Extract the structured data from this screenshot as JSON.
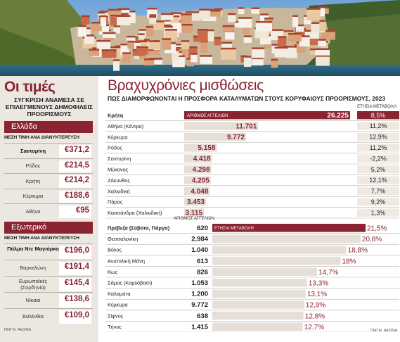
{
  "left": {
    "title": "Οι τιμές",
    "subtitle": "ΣΥΓΚΡΙΣΗ ΑΝΑΜΕΣΑ ΣΕ ΕΠΙΛΕΓΜΕΝΟΥΣ ΔΗΜΟΦΙΛΕΙΣ ΠΡΟΟΡΙΣΜΟΥΣ",
    "greece": {
      "header": "Ελλάδα",
      "caption": "ΜΕΣΗ ΤΙΜΗ ΑΝΑ ΔΙΑΝΥΚΤΕΡΕΥΣΗ",
      "rows": [
        {
          "name": "Σαντορίνη",
          "price": "€371,2",
          "bold": true
        },
        {
          "name": "Ρόδος",
          "price": "€214,5",
          "bold": false
        },
        {
          "name": "Κρήτη",
          "price": "€214,2",
          "bold": false
        },
        {
          "name": "Κέρκυρα",
          "price": "€188,6",
          "bold": false
        },
        {
          "name": "Αθήνα",
          "price": "€95",
          "bold": false
        }
      ]
    },
    "abroad": {
      "header": "Εξωτερικό",
      "caption": "ΜΕΣΗ ΤΙΜΗ ΑΝΑ ΔΙΑΝΥΚΤΕΡΕΥΣΗ",
      "rows": [
        {
          "name": "Πάλμα Ντε Μαγιόρκα",
          "price": "€196,0",
          "bold": true
        },
        {
          "name": "Βαρκελώνη",
          "price": "€191,4",
          "bold": false
        },
        {
          "name": "Ευρωπαϊκές (Σαρδηνία)",
          "price": "€145,4",
          "bold": false
        },
        {
          "name": "Νίκαια",
          "price": "€138,6",
          "bold": false
        },
        {
          "name": "Βαλένθια",
          "price": "€109,0",
          "bold": false
        }
      ]
    },
    "source": "ΠΗΓΗ: AirDNA"
  },
  "right": {
    "title": "Βραχυχρόνιες μισθώσεις",
    "subtitle": "ΠΩΣ ΔΙΑΜΟΡΦΩΝΟΝΤΑΙ Η ΠΡΟΣΦΟΡΑ ΚΑΤΑΛΥΜΑΤΩΝ ΣΤΟΥΣ ΚΟΡΥΦΑΙΟΥΣ ΠΡΟΟΡΙΣΜΟΥΣ, 2023",
    "source": "ΠΗΓΗ: AirDNA"
  },
  "chart_data": [
    {
      "type": "bar",
      "title": "Βραχυχρόνιες μισθώσεις",
      "series_label": "ΑΡΙΘΜΟΣ ΑΓΓΕΛΙΩΝ",
      "change_label": "ΕΤΗΣΙΑ ΜΕΤΑΒΟΛΗ",
      "categories": [
        "Κρήτη",
        "Αθήνα (Κέντρο)",
        "Κέρκυρα",
        "Ρόδος",
        "Σαντορίνη",
        "Μύκονος",
        "Ζάκυνθος",
        "Χαλκιδική",
        "Πάρος",
        "Κασσάνδρα (Χαλκιδική)"
      ],
      "values": [
        26225,
        11701,
        9772,
        5158,
        4418,
        4298,
        4205,
        4048,
        3453,
        3115
      ],
      "value_labels": [
        "26.225",
        "11.701",
        "9.772",
        "5.158",
        "4.418",
        "4.298",
        "4.205",
        "4.048",
        "3.453",
        "3.115"
      ],
      "changes": [
        8.5,
        11.2,
        12.9,
        11.2,
        -2.2,
        5.2,
        12.1,
        7.7,
        9.2,
        1.3
      ],
      "change_labels": [
        "8,5%",
        "11,2%",
        "12,9%",
        "11,2%",
        "-2,2%",
        "5,2%",
        "12,1%",
        "7,7%",
        "9,2%",
        "1,3%"
      ],
      "bold_categories": [
        "Κρήτη"
      ]
    },
    {
      "type": "bar",
      "series_label": "ΑΡΙΘΜΟΣ ΑΓΓΕΛΙΩΝ",
      "change_label": "ΕΤΗΣΙΑ ΜΕΤΑΒΟΛΗ",
      "categories": [
        "Πρέβεζα (Σύβοτα, Πάργα)",
        "Θεσσαλονίκη",
        "Βόλος",
        "Ανατολική Μάνη",
        "Κως",
        "Σάμος (Καρλόβασι)",
        "Καλαμάτα",
        "Κέρκυρα",
        "Σίφνος",
        "Τήνος"
      ],
      "values": [
        620,
        2984,
        1040,
        613,
        826,
        1053,
        1200,
        9772,
        638,
        1415
      ],
      "value_labels": [
        "620",
        "2.984",
        "1.040",
        "613",
        "826",
        "1.053",
        "1.200",
        "9.772",
        "638",
        "1.415"
      ],
      "changes": [
        21.5,
        20.8,
        18.8,
        18,
        14.7,
        13.3,
        13.1,
        12.9,
        12.8,
        12.7
      ],
      "change_labels": [
        "21,5%",
        "20,8%",
        "18,8%",
        "18%",
        "14,7%",
        "13,3%",
        "13,1%",
        "12,9%",
        "12,8%",
        "12,7%"
      ],
      "bold_categories": [
        "Πρέβεζα (Σύβοτα, Πάργα)"
      ]
    }
  ],
  "colors": {
    "accent": "#8a2431",
    "bar": "#e6dfd8",
    "panel": "#ece8e1"
  }
}
